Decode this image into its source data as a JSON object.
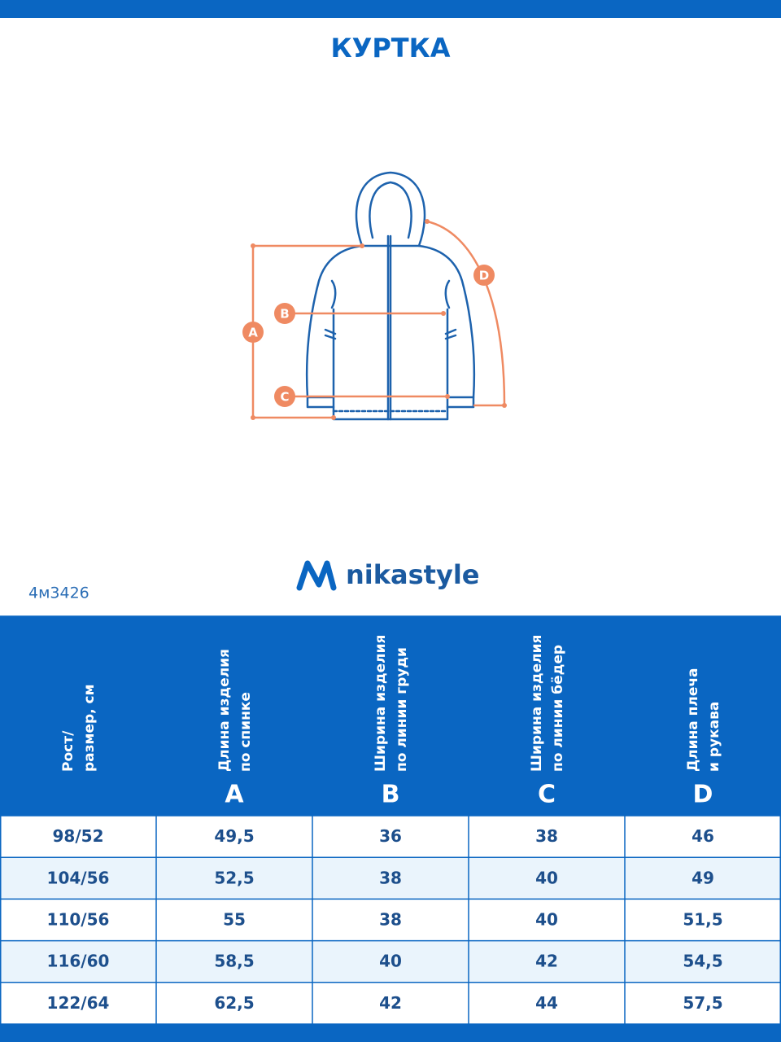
{
  "header": {
    "title": "КУРТКА"
  },
  "diagram": {
    "labels": [
      "A",
      "B",
      "C",
      "D"
    ]
  },
  "brand": {
    "name": "nikastyle"
  },
  "article": "4м3426",
  "table": {
    "columns": [
      {
        "lines": [
          "Рост/",
          "размер, см"
        ]
      },
      {
        "lines": [
          "Длина изделия",
          "по спинке"
        ],
        "letter": "A"
      },
      {
        "lines": [
          "Ширина изделия",
          "по линии груди"
        ],
        "letter": "B"
      },
      {
        "lines": [
          "Ширина изделия",
          "по линии бёдер"
        ],
        "letter": "C"
      },
      {
        "lines": [
          "Длина плеча",
          "и рукава"
        ],
        "letter": "D"
      }
    ],
    "rows": [
      [
        "98/52",
        "49,5",
        "36",
        "38",
        "46"
      ],
      [
        "104/56",
        "52,5",
        "38",
        "40",
        "49"
      ],
      [
        "110/56",
        "55",
        "38",
        "40",
        "51,5"
      ],
      [
        "116/60",
        "58,5",
        "40",
        "42",
        "54,5"
      ],
      [
        "122/64",
        "62,5",
        "42",
        "44",
        "57,5"
      ]
    ]
  }
}
